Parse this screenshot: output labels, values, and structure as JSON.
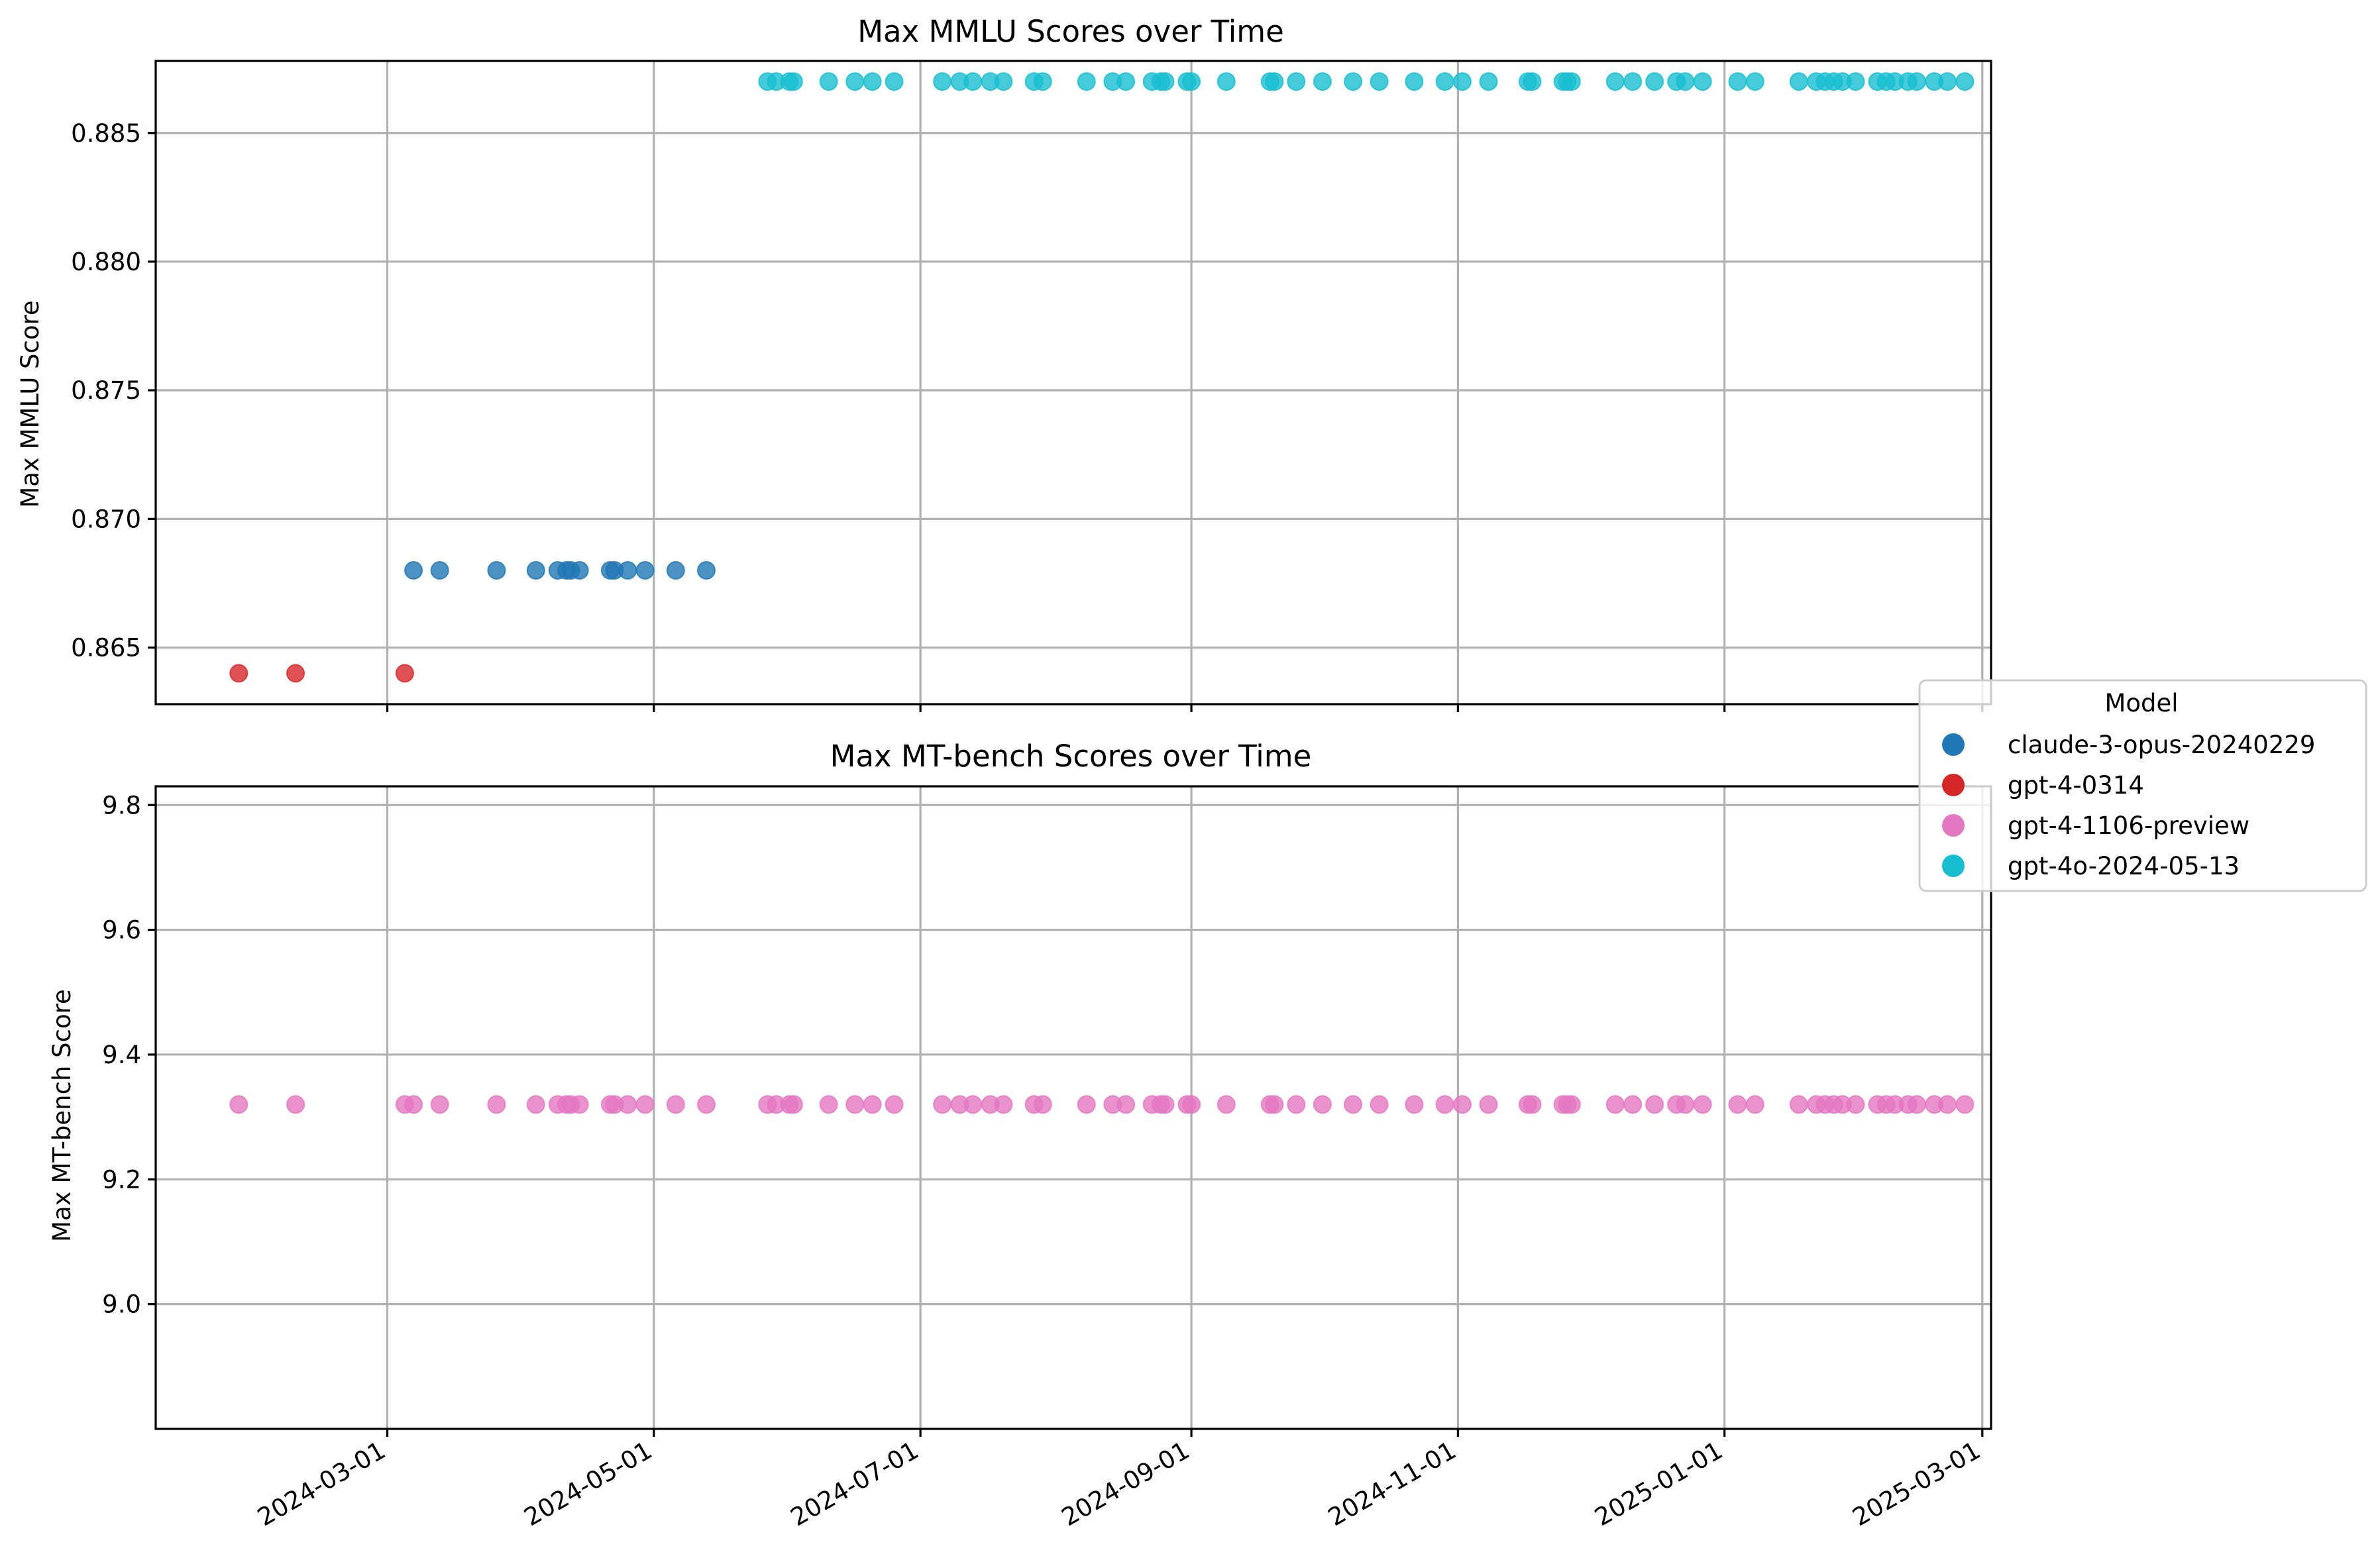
{
  "colors": {
    "claude-3-opus-20240229": "#1f77b4",
    "gpt-4-0314": "#d62728",
    "gpt-4-1106-preview": "#e377c2",
    "gpt-4o-2024-05-13": "#17becf"
  },
  "legend": {
    "title": "Model",
    "placement": "right, between the two panels",
    "entries": [
      "claude-3-opus-20240229",
      "gpt-4-0314",
      "gpt-4-1106-preview",
      "gpt-4o-2024-05-13"
    ]
  },
  "chart_data": [
    {
      "type": "scatter",
      "title": "Max MMLU Scores over Time",
      "xlabel": "",
      "ylabel": "Max MMLU Score",
      "x_is_date": true,
      "x_ticks_shown": false,
      "xlim": [
        "2024-01-08",
        "2025-03-03"
      ],
      "ylim": [
        0.8628,
        0.8878
      ],
      "yticks": [
        0.865,
        0.87,
        0.875,
        0.88,
        0.885
      ],
      "ytick_labels": [
        "0.865",
        "0.870",
        "0.875",
        "0.880",
        "0.885"
      ],
      "grid": true,
      "series": [
        {
          "name": "gpt-4-0314",
          "value": 0.864,
          "dates": [
            "2024-01-27",
            "2024-02-09",
            "2024-03-05"
          ]
        },
        {
          "name": "claude-3-opus-20240229",
          "value": 0.868,
          "dates": [
            "2024-03-07",
            "2024-03-13",
            "2024-03-26",
            "2024-04-04",
            "2024-04-09",
            "2024-04-11",
            "2024-04-12",
            "2024-04-14",
            "2024-04-21",
            "2024-04-22",
            "2024-04-25",
            "2024-04-29",
            "2024-05-06",
            "2024-05-13"
          ]
        },
        {
          "name": "gpt-4o-2024-05-13",
          "value": 0.887,
          "dates": [
            "2024-05-27",
            "2024-05-29",
            "2024-06-01",
            "2024-06-02",
            "2024-06-10",
            "2024-06-16",
            "2024-06-20",
            "2024-06-25",
            "2024-07-06",
            "2024-07-10",
            "2024-07-13",
            "2024-07-17",
            "2024-07-20",
            "2024-07-27",
            "2024-07-29",
            "2024-08-08",
            "2024-08-14",
            "2024-08-17",
            "2024-08-23",
            "2024-08-25",
            "2024-08-26",
            "2024-08-31",
            "2024-09-01",
            "2024-09-09",
            "2024-09-19",
            "2024-09-20",
            "2024-09-25",
            "2024-10-01",
            "2024-10-08",
            "2024-10-14",
            "2024-10-22",
            "2024-10-29",
            "2024-11-02",
            "2024-11-08",
            "2024-11-17",
            "2024-11-18",
            "2024-11-25",
            "2024-11-26",
            "2024-11-27",
            "2024-12-07",
            "2024-12-11",
            "2024-12-16",
            "2024-12-21",
            "2024-12-23",
            "2024-12-27",
            "2025-01-04",
            "2025-01-08",
            "2025-01-18",
            "2025-01-22",
            "2025-01-24",
            "2025-01-26",
            "2025-01-28",
            "2025-01-31",
            "2025-02-05",
            "2025-02-07",
            "2025-02-09",
            "2025-02-12",
            "2025-02-14",
            "2025-02-18",
            "2025-02-21",
            "2025-02-25"
          ]
        }
      ]
    },
    {
      "type": "scatter",
      "title": "Max MT-bench Scores over Time",
      "xlabel": "",
      "ylabel": "Max MT-bench Score",
      "x_is_date": true,
      "xlim": [
        "2024-01-08",
        "2025-03-03"
      ],
      "xticks": [
        "2024-03-01",
        "2024-05-01",
        "2024-07-01",
        "2024-09-01",
        "2024-11-01",
        "2025-01-01",
        "2025-03-01"
      ],
      "xtick_labels": [
        "2024-03-01",
        "2024-05-01",
        "2024-07-01",
        "2024-09-01",
        "2024-11-01",
        "2025-01-01",
        "2025-03-01"
      ],
      "ylim": [
        8.8,
        9.83
      ],
      "yticks": [
        9.0,
        9.2,
        9.4,
        9.6,
        9.8
      ],
      "ytick_labels": [
        "9.0",
        "9.2",
        "9.4",
        "9.6",
        "9.8"
      ],
      "grid": true,
      "series": [
        {
          "name": "gpt-4-1106-preview",
          "value": 9.32,
          "dates": [
            "2024-01-27",
            "2024-02-09",
            "2024-03-05",
            "2024-03-07",
            "2024-03-13",
            "2024-03-26",
            "2024-04-04",
            "2024-04-09",
            "2024-04-11",
            "2024-04-12",
            "2024-04-14",
            "2024-04-21",
            "2024-04-22",
            "2024-04-25",
            "2024-04-29",
            "2024-05-06",
            "2024-05-13",
            "2024-05-27",
            "2024-05-29",
            "2024-06-01",
            "2024-06-02",
            "2024-06-10",
            "2024-06-16",
            "2024-06-20",
            "2024-06-25",
            "2024-07-06",
            "2024-07-10",
            "2024-07-13",
            "2024-07-17",
            "2024-07-20",
            "2024-07-27",
            "2024-07-29",
            "2024-08-08",
            "2024-08-14",
            "2024-08-17",
            "2024-08-23",
            "2024-08-25",
            "2024-08-26",
            "2024-08-31",
            "2024-09-01",
            "2024-09-09",
            "2024-09-19",
            "2024-09-20",
            "2024-09-25",
            "2024-10-01",
            "2024-10-08",
            "2024-10-14",
            "2024-10-22",
            "2024-10-29",
            "2024-11-02",
            "2024-11-08",
            "2024-11-17",
            "2024-11-18",
            "2024-11-25",
            "2024-11-26",
            "2024-11-27",
            "2024-12-07",
            "2024-12-11",
            "2024-12-16",
            "2024-12-21",
            "2024-12-23",
            "2024-12-27",
            "2025-01-04",
            "2025-01-08",
            "2025-01-18",
            "2025-01-22",
            "2025-01-24",
            "2025-01-26",
            "2025-01-28",
            "2025-01-31",
            "2025-02-05",
            "2025-02-07",
            "2025-02-09",
            "2025-02-12",
            "2025-02-14",
            "2025-02-18",
            "2025-02-21",
            "2025-02-25"
          ]
        }
      ]
    }
  ]
}
